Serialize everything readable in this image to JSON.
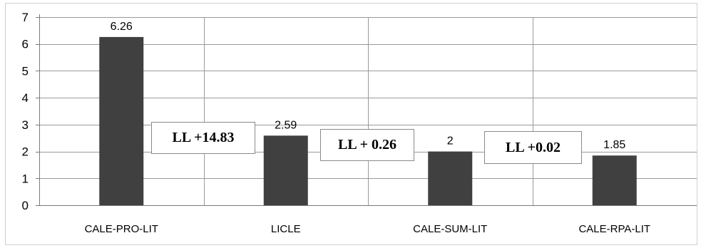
{
  "chart_data": {
    "type": "bar",
    "categories": [
      "CALE-PRO-LIT",
      "LICLE",
      "CALE-SUM-LIT",
      "CALE-RPA-LIT"
    ],
    "values": [
      6.26,
      2.59,
      2,
      1.85
    ],
    "data_labels": [
      "6.26",
      "2.59",
      "2",
      "1.85"
    ],
    "ylim": [
      0,
      7
    ],
    "yticks": [
      0,
      1,
      2,
      3,
      4,
      5,
      6,
      7
    ],
    "grid": true,
    "bar_color": "#404040",
    "annotations": [
      "LL +14.83",
      "LL + 0.26",
      "LL +0.02"
    ]
  }
}
